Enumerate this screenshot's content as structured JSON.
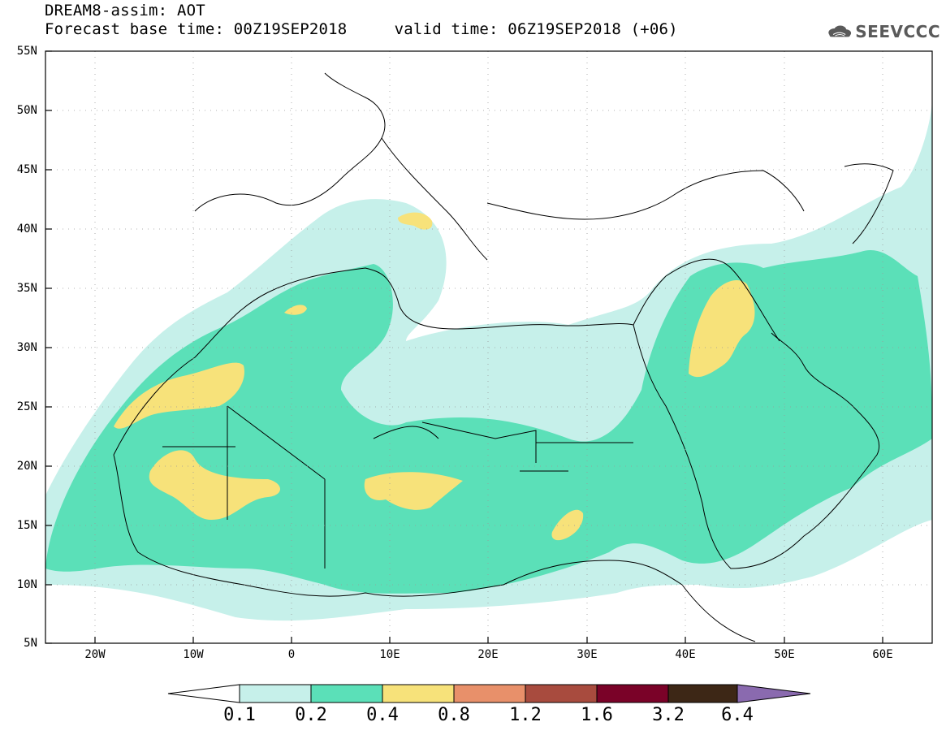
{
  "header": {
    "title_line1": "DREAM8-assim: AOT",
    "title_line2": "Forecast base time: 00Z19SEP2018     valid time: 06Z19SEP2018 (+06)"
  },
  "logo": {
    "text": "SEEVCCC",
    "icon": "cloud-icon"
  },
  "map": {
    "lat_labels": [
      "55N",
      "50N",
      "45N",
      "40N",
      "35N",
      "30N",
      "25N",
      "20N",
      "15N",
      "10N",
      "5N"
    ],
    "lon_labels": [
      "20W",
      "10W",
      "0",
      "10E",
      "20E",
      "30E",
      "40E",
      "50E",
      "60E"
    ],
    "colors": {
      "level_0_1": "#c6f0ea",
      "level_0_2": "#5be0b8",
      "level_0_4": "#f7e27a",
      "level_0_8": "#e8906a",
      "level_1_2": "#a84b3e",
      "level_1_6": "#7a0228",
      "level_3_2": "#3d2716",
      "level_6_4": "#8a6aaf"
    }
  },
  "colorbar": {
    "labels": [
      "0.1",
      "0.2",
      "0.4",
      "0.8",
      "1.2",
      "1.6",
      "3.2",
      "6.4"
    ]
  }
}
